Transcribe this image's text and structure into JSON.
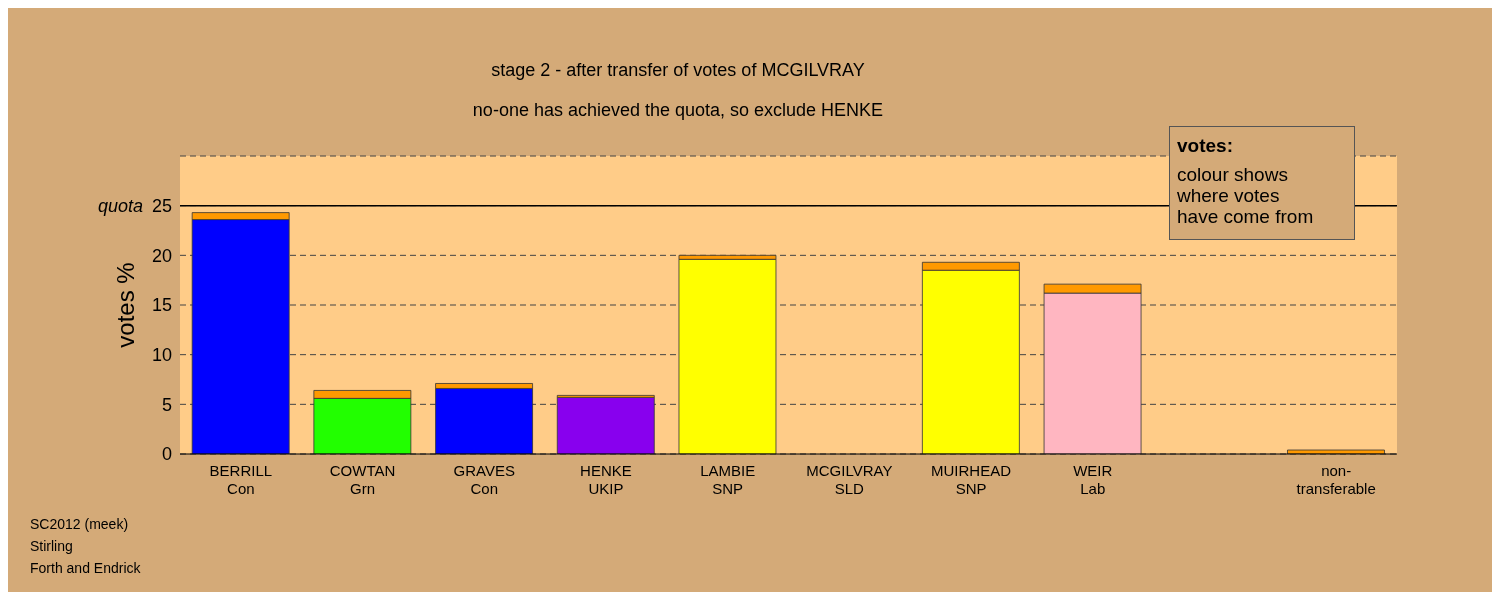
{
  "chart_data": {
    "type": "bar",
    "title": "stage 2 - after transfer of votes of MCGILVRAY",
    "subtitle": "no-one has achieved the quota, so exclude HENKE",
    "ylabel": "votes %",
    "legend_title": "votes:",
    "annotations": [
      "colour shows\nwhere votes\nhave come from",
      "SC2012 (meek)\nStirling\nForth and Endrick"
    ],
    "categories": [
      "BERRILL\nCon",
      "COWTAN\nGrn",
      "GRAVES\nCon",
      "HENKE\nUKIP",
      "LAMBIE\nSNP",
      "MCGILVRAY\nSLD",
      "MUIRHEAD\nSNP",
      "WEIR\nLab",
      null,
      "non-\ntransferable"
    ],
    "stacked": true,
    "series": [
      {
        "colors": [
          "#0000ff",
          "#22ff00",
          "#0000ff",
          "#8800ee",
          "#ffff00",
          "#ff9900",
          "#ffff00",
          "#ffb6c1",
          null,
          "#ff9900"
        ],
        "values": [
          23.6,
          5.6,
          6.6,
          5.7,
          19.6,
          0,
          18.5,
          16.2,
          null,
          0
        ]
      },
      {
        "color": "#ff9900",
        "values": [
          0.7,
          0.8,
          0.5,
          0.2,
          0.4,
          0,
          0.8,
          0.9,
          null,
          0.4
        ]
      }
    ],
    "ylim": [
      0,
      30
    ],
    "yticks": [
      0,
      5,
      10,
      15,
      20,
      25
    ],
    "grid": "y",
    "legend": false,
    "ref_lines": [
      {
        "axis": "y",
        "value": 25,
        "label": "quota",
        "color": "#000000",
        "line_style": "solid"
      }
    ]
  }
}
